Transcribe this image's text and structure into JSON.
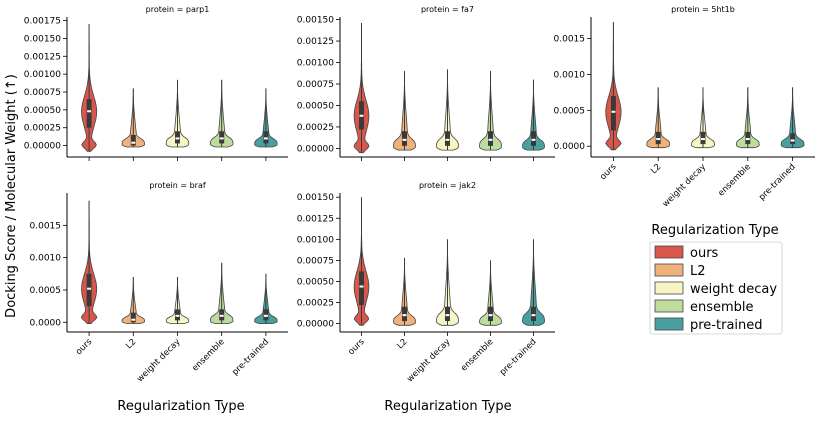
{
  "figure": {
    "ylabel": "Docking Score / Molecular Weight (↑)",
    "xlabel_left": "Regularization Type",
    "xlabel_right": "Regularization Type"
  },
  "legend": {
    "title": "Regularization Type",
    "items": [
      {
        "label": "ours",
        "color": "#d9574a"
      },
      {
        "label": "L2",
        "color": "#f0b27a"
      },
      {
        "label": "weight decay",
        "color": "#f8f5c4"
      },
      {
        "label": "ensemble",
        "color": "#bedc9d"
      },
      {
        "label": "pre-trained",
        "color": "#49a0a1"
      }
    ]
  },
  "chart_data": [
    {
      "type": "violin",
      "title": "protein = parp1",
      "categories": [
        "ours",
        "L2",
        "weight decay",
        "ensemble",
        "pre-trained"
      ],
      "ylim": [
        -0.00016,
        0.0018
      ],
      "yticks": [
        0.0,
        0.00025,
        0.0005,
        0.00075,
        0.001,
        0.00125,
        0.0015,
        0.00175
      ],
      "ytick_labels": [
        "0.00000",
        "0.00025",
        "0.00050",
        "0.00075",
        "0.00100",
        "0.00125",
        "0.00150",
        "0.00175"
      ],
      "show_xticklabels": false,
      "violins": [
        {
          "min": -8e-05,
          "max": 0.0017,
          "q1": 0.00025,
          "median": 0.00048,
          "q3": 0.00065
        },
        {
          "min": -2e-05,
          "max": 0.0008,
          "q1": 0.0,
          "median": 4e-05,
          "q3": 0.00015
        },
        {
          "min": -2e-05,
          "max": 0.00092,
          "q1": 3e-05,
          "median": 0.0001,
          "q3": 0.0002
        },
        {
          "min": -2e-05,
          "max": 0.00092,
          "q1": 3e-05,
          "median": 0.0001,
          "q3": 0.0002
        },
        {
          "min": -2e-05,
          "max": 0.0008,
          "q1": 3e-05,
          "median": 0.0001,
          "q3": 0.0002
        }
      ]
    },
    {
      "type": "violin",
      "title": "protein = fa7",
      "categories": [
        "ours",
        "L2",
        "weight decay",
        "ensemble",
        "pre-trained"
      ],
      "ylim": [
        -0.0001,
        0.00153
      ],
      "yticks": [
        0.0,
        0.00025,
        0.0005,
        0.00075,
        0.001,
        0.00125,
        0.0015
      ],
      "ytick_labels": [
        "0.00000",
        "0.00025",
        "0.00050",
        "0.00075",
        "0.00100",
        "0.00125",
        "0.00150"
      ],
      "show_xticklabels": false,
      "violins": [
        {
          "min": -5e-05,
          "max": 0.00146,
          "q1": 0.00022,
          "median": 0.00038,
          "q3": 0.00055
        },
        {
          "min": -2e-05,
          "max": 0.0009,
          "q1": 3e-05,
          "median": 0.0001,
          "q3": 0.0002
        },
        {
          "min": -2e-05,
          "max": 0.00092,
          "q1": 3e-05,
          "median": 0.0001,
          "q3": 0.0002
        },
        {
          "min": -2e-05,
          "max": 0.0009,
          "q1": 3e-05,
          "median": 0.0001,
          "q3": 0.0002
        },
        {
          "min": -2e-05,
          "max": 0.0008,
          "q1": 3e-05,
          "median": 0.0001,
          "q3": 0.0002
        }
      ]
    },
    {
      "type": "violin",
      "title": "protein = 5ht1b",
      "categories": [
        "ours",
        "L2",
        "weight decay",
        "ensemble",
        "pre-trained"
      ],
      "ylim": [
        -0.00015,
        0.0018
      ],
      "yticks": [
        0.0,
        0.0005,
        0.001,
        0.0015
      ],
      "ytick_labels": [
        "0.0000",
        "0.0005",
        "0.0010",
        "0.0015"
      ],
      "show_xticklabels": true,
      "violins": [
        {
          "min": -5e-05,
          "max": 0.00173,
          "q1": 0.00022,
          "median": 0.00048,
          "q3": 0.0007
        },
        {
          "min": -2e-05,
          "max": 0.00082,
          "q1": 3e-05,
          "median": 0.0001,
          "q3": 0.0002
        },
        {
          "min": -2e-05,
          "max": 0.00082,
          "q1": 3e-05,
          "median": 0.0001,
          "q3": 0.0002
        },
        {
          "min": -2e-05,
          "max": 0.00082,
          "q1": 3e-05,
          "median": 0.0001,
          "q3": 0.0002
        },
        {
          "min": -2e-05,
          "max": 0.00082,
          "q1": 3e-05,
          "median": 8e-05,
          "q3": 0.00018
        }
      ]
    },
    {
      "type": "violin",
      "title": "protein = braf",
      "categories": [
        "ours",
        "L2",
        "weight decay",
        "ensemble",
        "pre-trained"
      ],
      "ylim": [
        -0.00015,
        0.002
      ],
      "yticks": [
        0.0,
        0.0005,
        0.001,
        0.0015
      ],
      "ytick_labels": [
        "0.0000",
        "0.0005",
        "0.0010",
        "0.0015"
      ],
      "show_xticklabels": true,
      "violins": [
        {
          "min": -2e-05,
          "max": 0.00188,
          "q1": 0.00025,
          "median": 0.00052,
          "q3": 0.00075
        },
        {
          "min": -2e-05,
          "max": 0.0007,
          "q1": 0.0,
          "median": 4e-05,
          "q3": 0.00015
        },
        {
          "min": -2e-05,
          "max": 0.0007,
          "q1": 3e-05,
          "median": 0.0001,
          "q3": 0.0002
        },
        {
          "min": -2e-05,
          "max": 0.00092,
          "q1": 3e-05,
          "median": 0.0001,
          "q3": 0.0002
        },
        {
          "min": -2e-05,
          "max": 0.00075,
          "q1": 3e-05,
          "median": 0.0001,
          "q3": 0.0002
        }
      ]
    },
    {
      "type": "violin",
      "title": "protein = jak2",
      "categories": [
        "ours",
        "L2",
        "weight decay",
        "ensemble",
        "pre-trained"
      ],
      "ylim": [
        -0.0001,
        0.00155
      ],
      "yticks": [
        0.0,
        0.00025,
        0.0005,
        0.00075,
        0.001,
        0.00125,
        0.0015
      ],
      "ytick_labels": [
        "0.00000",
        "0.00025",
        "0.00050",
        "0.00075",
        "0.00100",
        "0.00125",
        "0.00150"
      ],
      "show_xticklabels": true,
      "violins": [
        {
          "min": -2e-05,
          "max": 0.0015,
          "q1": 0.00022,
          "median": 0.00044,
          "q3": 0.00062
        },
        {
          "min": -2e-05,
          "max": 0.00078,
          "q1": 3e-05,
          "median": 0.0001,
          "q3": 0.0002
        },
        {
          "min": -2e-05,
          "max": 0.001,
          "q1": 3e-05,
          "median": 0.0001,
          "q3": 0.0002
        },
        {
          "min": -2e-05,
          "max": 0.00075,
          "q1": 3e-05,
          "median": 0.0001,
          "q3": 0.0002
        },
        {
          "min": -2e-05,
          "max": 0.001,
          "q1": 3e-05,
          "median": 0.0001,
          "q3": 0.0002
        }
      ]
    }
  ]
}
